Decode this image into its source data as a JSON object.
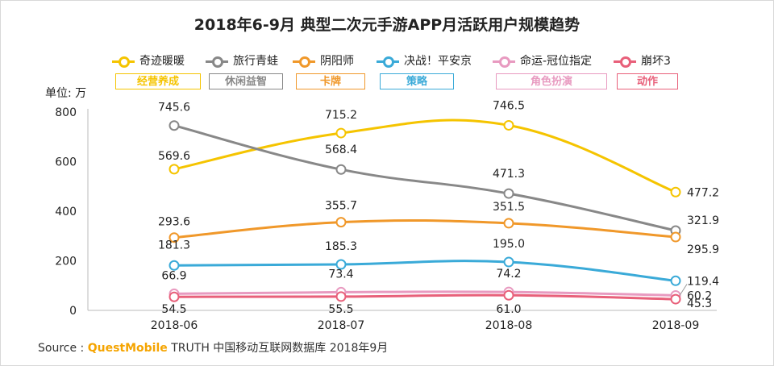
{
  "chart_data": {
    "type": "line",
    "title": "2018年6-9月 典型二次元手游APP月活跃用户规模趋势",
    "ylabel": "单位: 万",
    "ylim": [
      0,
      800
    ],
    "yticks": [
      0,
      200,
      400,
      600,
      800
    ],
    "categories": [
      "2018-06",
      "2018-07",
      "2018-08",
      "2018-09"
    ],
    "grid": false,
    "legend_position": "top",
    "series": [
      {
        "name": "奇迹暖暖",
        "genre": "经营养成",
        "color": "#f5c400",
        "values": [
          569.6,
          715.2,
          746.5,
          477.2
        ],
        "labels": [
          "569.6",
          "715.2",
          "746.5",
          "477.2"
        ]
      },
      {
        "name": "旅行青蛙",
        "genre": "休闲益智",
        "color": "#888888",
        "values": [
          745.6,
          568.4,
          471.3,
          321.9
        ],
        "labels": [
          "745.6",
          "568.4",
          "471.3",
          "321.9"
        ]
      },
      {
        "name": "阴阳师",
        "genre": "卡牌",
        "color": "#f0982a",
        "values": [
          293.6,
          355.7,
          351.5,
          295.9
        ],
        "labels": [
          "293.6",
          "355.7",
          "351.5",
          "295.9"
        ]
      },
      {
        "name": "决战！平安京",
        "genre": "策略",
        "color": "#3aaad8",
        "values": [
          181.3,
          185.3,
          195.0,
          119.4
        ],
        "labels": [
          "181.3",
          "185.3",
          "195.0",
          "119.4"
        ]
      },
      {
        "name": "命运-冠位指定",
        "genre": "角色扮演",
        "color": "#e89ac0",
        "values": [
          66.9,
          73.4,
          74.2,
          60.2
        ],
        "labels": [
          "66.9",
          "73.4",
          "74.2",
          "60.2"
        ]
      },
      {
        "name": "崩坏3",
        "genre": "动作",
        "color": "#e8607a",
        "values": [
          54.5,
          55.5,
          61.0,
          45.3
        ],
        "labels": [
          "54.5",
          "55.5",
          "61.0",
          "45.3"
        ]
      }
    ]
  },
  "source": {
    "prefix": "Source :",
    "brand": "QuestMobile",
    "rest": "TRUTH 中国移动互联网数据库 2018年9月"
  }
}
